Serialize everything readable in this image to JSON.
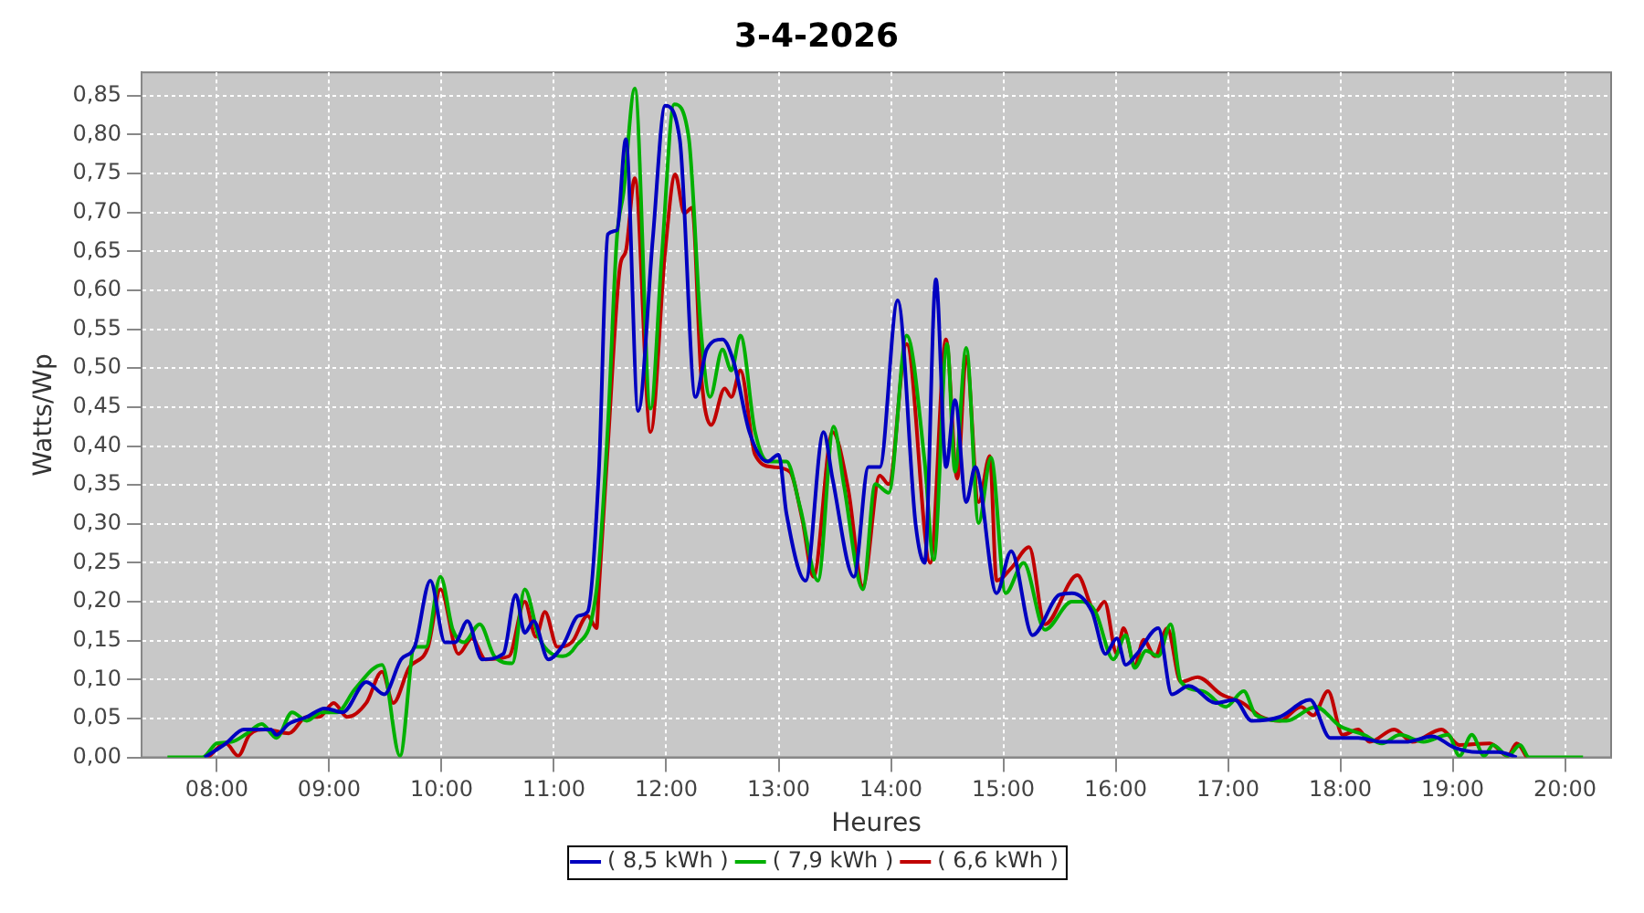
{
  "chart_data": {
    "type": "line",
    "title": "3-4-2026",
    "xlabel": "Heures",
    "ylabel": "Watts/Wp",
    "xlim": [
      7.33,
      20.41
    ],
    "ylim": [
      0,
      0.88
    ],
    "xticks": [
      {
        "value": 8,
        "label": "08:00"
      },
      {
        "value": 9,
        "label": "09:00"
      },
      {
        "value": 10,
        "label": "10:00"
      },
      {
        "value": 11,
        "label": "11:00"
      },
      {
        "value": 12,
        "label": "12:00"
      },
      {
        "value": 13,
        "label": "13:00"
      },
      {
        "value": 14,
        "label": "14:00"
      },
      {
        "value": 15,
        "label": "15:00"
      },
      {
        "value": 16,
        "label": "16:00"
      },
      {
        "value": 17,
        "label": "17:00"
      },
      {
        "value": 18,
        "label": "18:00"
      },
      {
        "value": 19,
        "label": "19:00"
      },
      {
        "value": 20,
        "label": "20:00"
      }
    ],
    "yticks": [
      {
        "value": 0,
        "label": "0,00"
      },
      {
        "value": 0.05,
        "label": "0,05"
      },
      {
        "value": 0.1,
        "label": "0,10"
      },
      {
        "value": 0.15,
        "label": "0,15"
      },
      {
        "value": 0.2,
        "label": "0,20"
      },
      {
        "value": 0.25,
        "label": "0,25"
      },
      {
        "value": 0.3,
        "label": "0,30"
      },
      {
        "value": 0.35,
        "label": "0,35"
      },
      {
        "value": 0.4,
        "label": "0,40"
      },
      {
        "value": 0.45,
        "label": "0,45"
      },
      {
        "value": 0.5,
        "label": "0,50"
      },
      {
        "value": 0.55,
        "label": "0,55"
      },
      {
        "value": 0.6,
        "label": "0,60"
      },
      {
        "value": 0.65,
        "label": "0,65"
      },
      {
        "value": 0.7,
        "label": "0,70"
      },
      {
        "value": 0.75,
        "label": "0,75"
      },
      {
        "value": 0.8,
        "label": "0,80"
      },
      {
        "value": 0.85,
        "label": "0,85"
      }
    ],
    "grid": true,
    "legend": "bottom",
    "marker": "none",
    "line_style": "solid",
    "series": [
      {
        "name": "( 8,5 kWh )",
        "color": "#0000c0",
        "x": [
          7.89,
          8.08,
          8.24,
          8.48,
          8.53,
          8.64,
          8.8,
          8.96,
          9.12,
          9.33,
          9.49,
          9.64,
          9.76,
          9.9,
          10.03,
          10.12,
          10.23,
          10.36,
          10.55,
          10.66,
          10.74,
          10.82,
          10.95,
          11.08,
          11.22,
          11.3,
          11.4,
          11.48,
          11.56,
          11.64,
          11.75,
          11.88,
          11.99,
          12.12,
          12.26,
          12.36,
          12.5,
          12.6,
          12.74,
          12.9,
          13.0,
          13.07,
          13.24,
          13.4,
          13.48,
          13.67,
          13.8,
          13.9,
          14.06,
          14.22,
          14.3,
          14.4,
          14.49,
          14.57,
          14.67,
          14.75,
          14.94,
          15.07,
          15.26,
          15.5,
          15.61,
          15.79,
          15.91,
          16.01,
          16.09,
          16.19,
          16.38,
          16.5,
          16.65,
          16.89,
          17.06,
          17.21,
          17.46,
          17.73,
          17.91,
          18.16,
          18.37,
          18.58,
          18.82,
          19.01,
          19.22,
          19.41,
          19.57
        ],
        "values": [
          0,
          0.018,
          0.036,
          0.036,
          0.029,
          0.043,
          0.052,
          0.063,
          0.058,
          0.097,
          0.081,
          0.126,
          0.142,
          0.227,
          0.148,
          0.148,
          0.175,
          0.126,
          0.133,
          0.209,
          0.16,
          0.175,
          0.126,
          0.144,
          0.182,
          0.187,
          0.367,
          0.672,
          0.677,
          0.794,
          0.445,
          0.666,
          0.837,
          0.794,
          0.463,
          0.524,
          0.537,
          0.508,
          0.418,
          0.38,
          0.389,
          0.313,
          0.227,
          0.418,
          0.358,
          0.232,
          0.373,
          0.373,
          0.587,
          0.299,
          0.25,
          0.614,
          0.373,
          0.459,
          0.328,
          0.373,
          0.211,
          0.265,
          0.157,
          0.209,
          0.211,
          0.187,
          0.133,
          0.153,
          0.119,
          0.133,
          0.166,
          0.081,
          0.092,
          0.07,
          0.074,
          0.047,
          0.052,
          0.074,
          0.025,
          0.025,
          0.02,
          0.02,
          0.027,
          0.013,
          0.007,
          0.007,
          0
        ]
      },
      {
        "name": "( 7,9 kWh )",
        "color": "#00b000",
        "x": [
          7.56,
          7.87,
          8.0,
          8.13,
          8.27,
          8.4,
          8.53,
          8.67,
          8.8,
          8.93,
          9.07,
          9.23,
          9.47,
          9.63,
          9.76,
          9.86,
          9.99,
          10.1,
          10.2,
          10.34,
          10.47,
          10.63,
          10.74,
          10.87,
          11.08,
          11.19,
          11.38,
          11.48,
          11.56,
          11.62,
          11.72,
          11.86,
          11.96,
          12.07,
          12.2,
          12.31,
          12.39,
          12.5,
          12.58,
          12.66,
          12.79,
          12.91,
          13.07,
          13.19,
          13.35,
          13.49,
          13.58,
          13.75,
          13.86,
          13.98,
          14.14,
          14.3,
          14.38,
          14.5,
          14.57,
          14.67,
          14.78,
          14.89,
          15.02,
          15.18,
          15.37,
          15.61,
          15.71,
          15.82,
          15.98,
          16.09,
          16.17,
          16.27,
          16.38,
          16.49,
          16.58,
          16.78,
          16.98,
          17.14,
          17.25,
          17.52,
          17.78,
          18.0,
          18.21,
          18.37,
          18.53,
          18.74,
          18.96,
          19.06,
          19.17,
          19.28,
          19.36,
          19.49,
          19.6,
          19.68,
          20.16
        ],
        "values": [
          0,
          0,
          0.018,
          0.02,
          0.031,
          0.043,
          0.025,
          0.058,
          0.047,
          0.058,
          0.058,
          0.088,
          0.119,
          0.002,
          0.142,
          0.142,
          0.232,
          0.164,
          0.148,
          0.171,
          0.13,
          0.121,
          0.216,
          0.153,
          0.13,
          0.142,
          0.216,
          0.425,
          0.666,
          0.726,
          0.859,
          0.448,
          0.643,
          0.839,
          0.796,
          0.546,
          0.463,
          0.524,
          0.497,
          0.542,
          0.418,
          0.38,
          0.38,
          0.322,
          0.227,
          0.425,
          0.351,
          0.216,
          0.351,
          0.34,
          0.542,
          0.38,
          0.254,
          0.531,
          0.367,
          0.526,
          0.301,
          0.385,
          0.211,
          0.25,
          0.164,
          0.2,
          0.2,
          0.187,
          0.126,
          0.157,
          0.115,
          0.137,
          0.13,
          0.171,
          0.097,
          0.085,
          0.065,
          0.085,
          0.054,
          0.047,
          0.065,
          0.04,
          0.029,
          0.018,
          0.029,
          0.02,
          0.029,
          0.002,
          0.029,
          0.002,
          0.016,
          0.002,
          0.016,
          0,
          0
        ]
      },
      {
        "name": "( 6,6 kWh )",
        "color": "#c00000",
        "x": [
          7.92,
          8.08,
          8.19,
          8.29,
          8.43,
          8.64,
          8.8,
          8.91,
          9.04,
          9.16,
          9.33,
          9.47,
          9.57,
          9.71,
          9.88,
          9.99,
          10.15,
          10.27,
          10.39,
          10.6,
          10.74,
          10.84,
          10.92,
          11.03,
          11.16,
          11.3,
          11.38,
          11.4,
          11.48,
          11.59,
          11.64,
          11.72,
          11.86,
          11.99,
          12.08,
          12.16,
          12.23,
          12.31,
          12.4,
          12.52,
          12.58,
          12.66,
          12.79,
          12.95,
          13.1,
          13.21,
          13.31,
          13.48,
          13.62,
          13.75,
          13.9,
          13.98,
          14.14,
          14.35,
          14.49,
          14.59,
          14.67,
          14.78,
          14.88,
          14.94,
          15.07,
          15.23,
          15.37,
          15.66,
          15.82,
          15.9,
          16.01,
          16.07,
          16.17,
          16.25,
          16.35,
          16.46,
          16.58,
          16.73,
          16.94,
          17.13,
          17.3,
          17.46,
          17.65,
          17.76,
          17.89,
          18.02,
          18.16,
          18.26,
          18.48,
          18.64,
          18.9,
          19.06,
          19.33,
          19.49,
          19.57,
          19.66
        ],
        "values": [
          0,
          0.018,
          0.002,
          0.029,
          0.036,
          0.031,
          0.052,
          0.052,
          0.07,
          0.052,
          0.07,
          0.11,
          0.07,
          0.115,
          0.142,
          0.216,
          0.133,
          0.153,
          0.126,
          0.13,
          0.2,
          0.155,
          0.187,
          0.142,
          0.148,
          0.182,
          0.166,
          0.216,
          0.4,
          0.632,
          0.65,
          0.744,
          0.418,
          0.65,
          0.749,
          0.699,
          0.706,
          0.492,
          0.427,
          0.474,
          0.463,
          0.497,
          0.389,
          0.373,
          0.367,
          0.306,
          0.232,
          0.418,
          0.344,
          0.22,
          0.362,
          0.351,
          0.531,
          0.25,
          0.537,
          0.358,
          0.515,
          0.328,
          0.387,
          0.227,
          0.243,
          0.27,
          0.171,
          0.234,
          0.187,
          0.2,
          0.133,
          0.166,
          0.119,
          0.151,
          0.13,
          0.166,
          0.097,
          0.103,
          0.081,
          0.07,
          0.052,
          0.047,
          0.065,
          0.054,
          0.085,
          0.029,
          0.036,
          0.02,
          0.036,
          0.02,
          0.036,
          0.016,
          0.018,
          0.002,
          0.018,
          0
        ]
      }
    ]
  }
}
